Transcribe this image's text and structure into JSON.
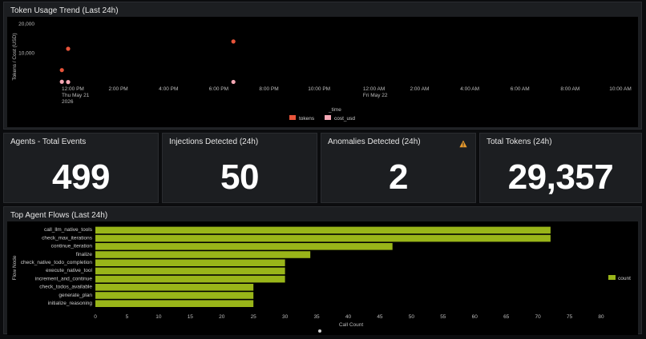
{
  "panels": {
    "token_trend": {
      "title": "Token Usage Trend (Last 24h)"
    },
    "total_events": {
      "title": "Agents - Total Events",
      "value": "499"
    },
    "injections": {
      "title": "Injections Detected (24h)",
      "value": "50"
    },
    "anomalies": {
      "title": "Anomalies Detected (24h)",
      "value": "2",
      "warning_icon": "warning-icon"
    },
    "total_tokens": {
      "title": "Total Tokens (24h)",
      "value": "29,357"
    },
    "top_flows": {
      "title": "Top Agent Flows (Last 24h)"
    }
  },
  "colors": {
    "tokens": "#e8543a",
    "cost_usd": "#f5a7b4",
    "bar": "#99b519",
    "warning": "#e89a2c"
  },
  "chart_data": [
    {
      "type": "scatter",
      "ylabel": "Tokens / Cost (USD)",
      "xlabel": "_time",
      "y_ticks": [
        "20,000",
        "10,000"
      ],
      "x_ticks": [
        [
          "12:00 PM",
          "Thu May 21",
          "2026"
        ],
        [
          "2:00 PM"
        ],
        [
          "4:00 PM"
        ],
        [
          "6:00 PM"
        ],
        [
          "8:00 PM"
        ],
        [
          "10:00 PM"
        ],
        [
          "12:00 AM",
          "Fri May 22"
        ],
        [
          "2:00 AM"
        ],
        [
          "4:00 AM"
        ],
        [
          "6:00 AM"
        ],
        [
          "8:00 AM"
        ],
        [
          "10:00 AM"
        ]
      ],
      "ylim": [
        0,
        20000
      ],
      "legend_position": "bottom",
      "series": [
        {
          "name": "tokens",
          "points": [
            [
              "11:45 AM",
              4200
            ],
            [
              "12:00 PM",
              11500
            ],
            [
              "6:35 PM",
              14000
            ]
          ]
        },
        {
          "name": "cost_usd",
          "points": [
            [
              "11:45 AM",
              200
            ],
            [
              "12:00 PM",
              100
            ],
            [
              "6:35 PM",
              150
            ]
          ]
        }
      ]
    },
    {
      "type": "bar",
      "orientation": "horizontal",
      "xlabel": "Call Count",
      "ylabel": "Flow Node",
      "xlim": [
        0,
        80
      ],
      "x_ticks": [
        "0",
        "5",
        "10",
        "15",
        "20",
        "25",
        "30",
        "35",
        "40",
        "45",
        "50",
        "55",
        "60",
        "65",
        "70",
        "75",
        "80"
      ],
      "legend_position": "right",
      "categories": [
        "call_llm_native_tools",
        "check_max_iterations",
        "continue_iteration",
        "finalize",
        "check_native_todo_completion",
        "execute_native_tool",
        "increment_and_continue",
        "check_todos_available",
        "generate_plan",
        "initialize_reasoning"
      ],
      "series": [
        {
          "name": "count",
          "values": [
            72,
            72,
            47,
            34,
            30,
            30,
            30,
            25,
            25,
            25
          ]
        }
      ]
    }
  ]
}
